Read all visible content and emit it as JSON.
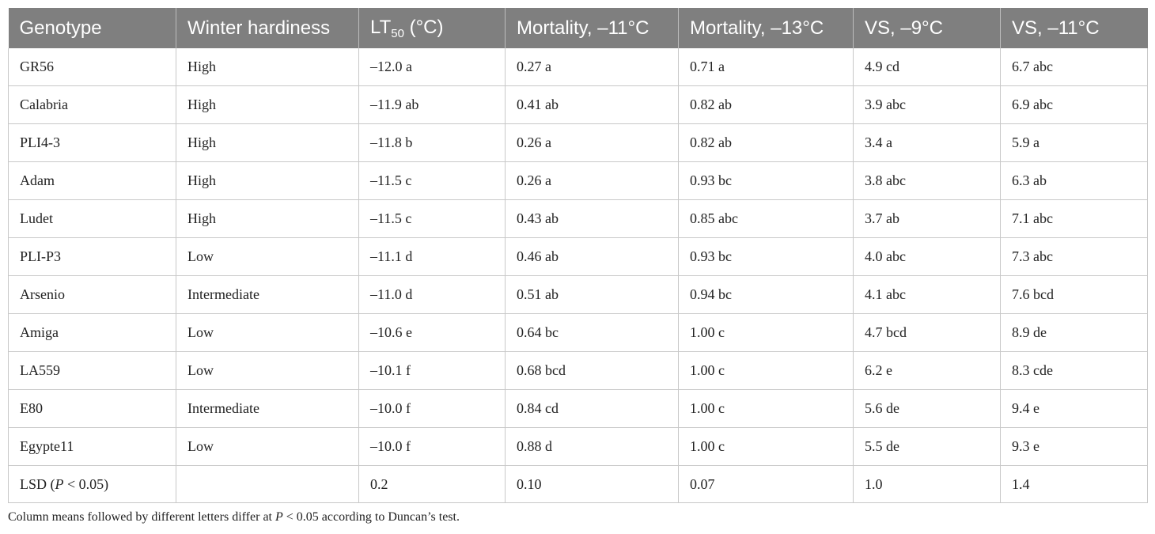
{
  "table": {
    "headers": [
      "Genotype",
      "Winter hardiness",
      {
        "main": "LT",
        "sub": "50",
        "suffix": " (°C)"
      },
      "Mortality, –11°C",
      "Mortality, –13°C",
      "VS, –9°C",
      "VS, –11°C"
    ],
    "rows": [
      [
        "GR56",
        "High",
        "–12.0 a",
        "0.27 a",
        "0.71 a",
        "4.9 cd",
        "6.7 abc"
      ],
      [
        "Calabria",
        "High",
        "–11.9 ab",
        "0.41 ab",
        "0.82 ab",
        "3.9 abc",
        "6.9 abc"
      ],
      [
        "PLI4-3",
        "High",
        "–11.8 b",
        "0.26 a",
        "0.82 ab",
        "3.4 a",
        "5.9 a"
      ],
      [
        "Adam",
        "High",
        "–11.5 c",
        "0.26 a",
        "0.93 bc",
        "3.8 abc",
        "6.3 ab"
      ],
      [
        "Ludet",
        "High",
        "–11.5 c",
        "0.43 ab",
        "0.85 abc",
        "3.7 ab",
        "7.1 abc"
      ],
      [
        "PLI-P3",
        "Low",
        "–11.1 d",
        "0.46 ab",
        "0.93 bc",
        "4.0 abc",
        "7.3 abc"
      ],
      [
        "Arsenio",
        "Intermediate",
        "–11.0 d",
        "0.51 ab",
        "0.94 bc",
        "4.1 abc",
        "7.6 bcd"
      ],
      [
        "Amiga",
        "Low",
        "–10.6 e",
        "0.64 bc",
        "1.00 c",
        "4.7 bcd",
        "8.9 de"
      ],
      [
        "LA559",
        "Low",
        "–10.1 f",
        "0.68 bcd",
        "1.00 c",
        "6.2 e",
        "8.3 cde"
      ],
      [
        "E80",
        "Intermediate",
        "–10.0 f",
        "0.84 cd",
        "1.00 c",
        "5.6 de",
        "9.4 e"
      ],
      [
        "Egypte11",
        "Low",
        "–10.0 f",
        "0.88 d",
        "1.00 c",
        "5.5 de",
        "9.3 e"
      ]
    ],
    "lsd_row": {
      "label_pre": "LSD (",
      "label_italic": "P",
      "label_post": " < 0.05)",
      "values": [
        "",
        "0.2",
        "0.10",
        "0.07",
        "1.0",
        "1.4"
      ]
    }
  },
  "footnote": {
    "pre": "Column means followed by different letters differ at ",
    "italic": "P",
    "post": " < 0.05 according to Duncan’s test."
  }
}
